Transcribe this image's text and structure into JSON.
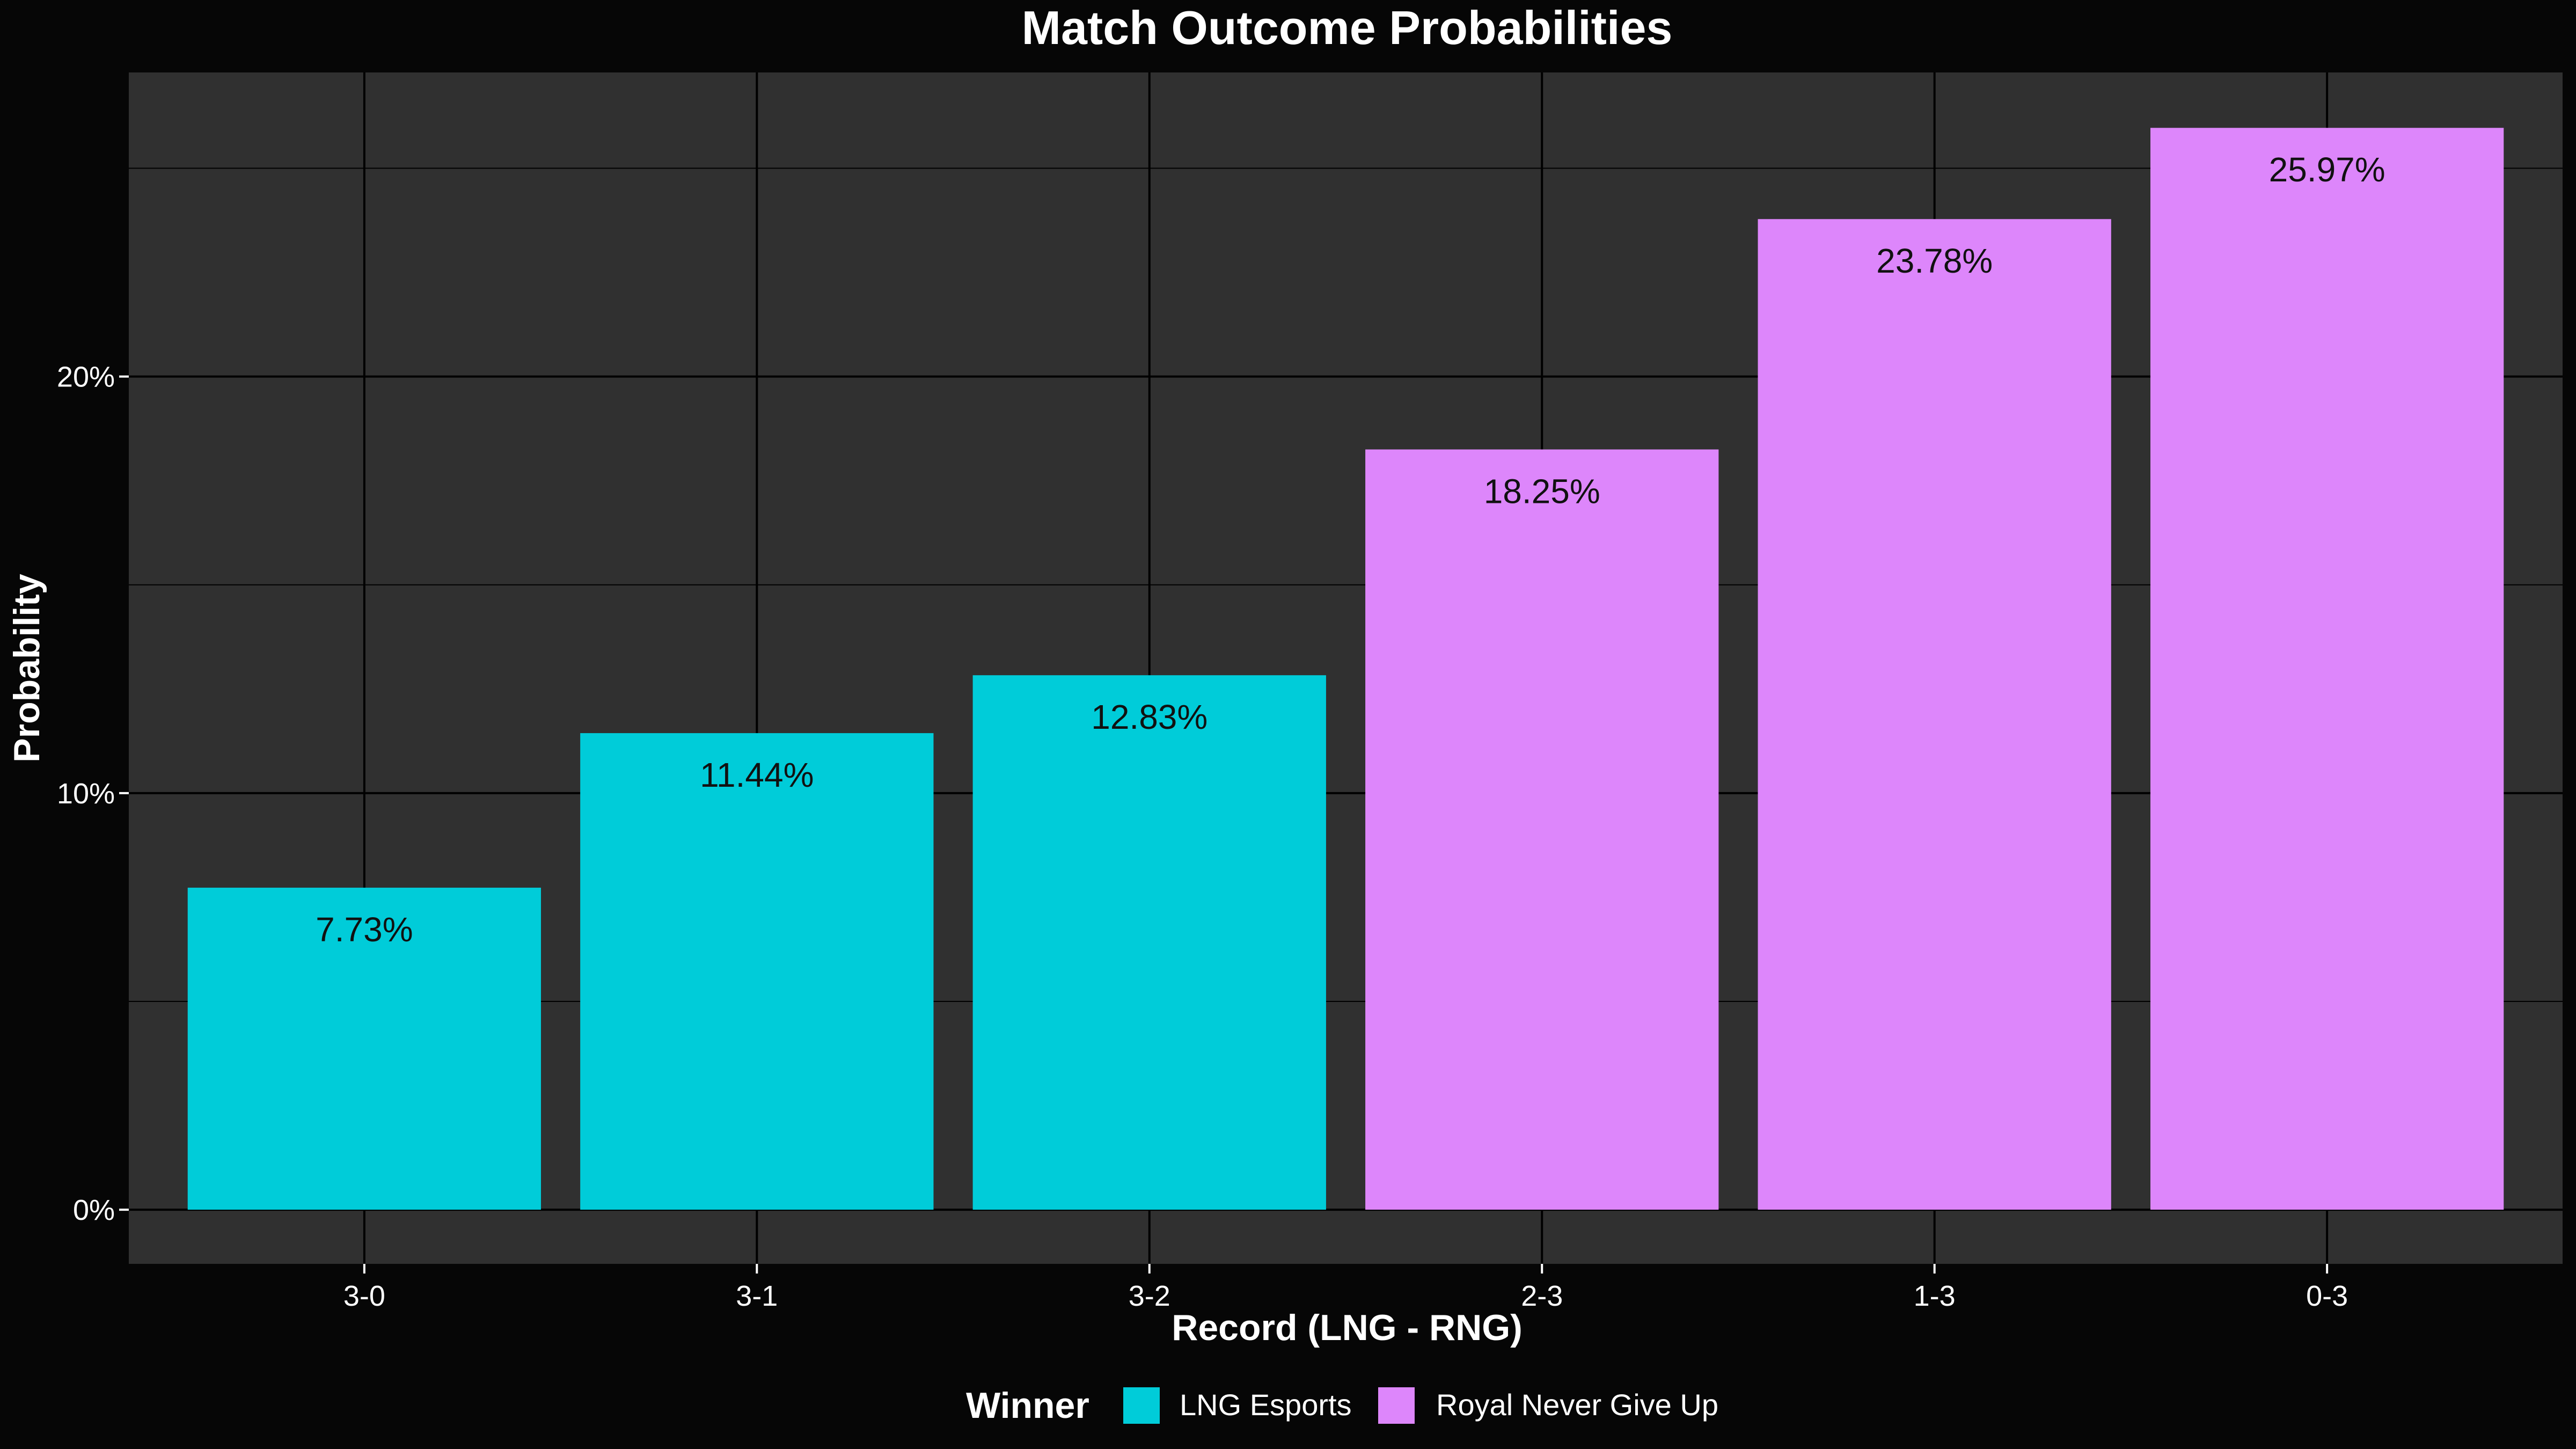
{
  "chart_data": {
    "type": "bar",
    "title": "Match Outcome Probabilities",
    "xlabel": "Record (LNG - RNG)",
    "ylabel": "Probability",
    "categories": [
      "3-0",
      "3-1",
      "3-2",
      "2-3",
      "1-3",
      "0-3"
    ],
    "values": [
      7.73,
      11.44,
      12.83,
      18.25,
      23.78,
      25.97
    ],
    "data_labels": [
      "7.73%",
      "11.44%",
      "12.83%",
      "18.25%",
      "23.78%",
      "25.97%"
    ],
    "bar_winner": [
      "LNG Esports",
      "LNG Esports",
      "LNG Esports",
      "Royal Never Give Up",
      "Royal Never Give Up",
      "Royal Never Give Up"
    ],
    "ylim": [
      -1.3,
      27.3
    ],
    "y_ticks": [
      0,
      10,
      20
    ],
    "y_tick_labels": [
      "0%",
      "10%",
      "20%"
    ],
    "grid": true,
    "legend": {
      "title": "Winner",
      "position": "bottom",
      "entries": [
        {
          "label": "LNG Esports",
          "color": "#00CCD9"
        },
        {
          "label": "Royal Never Give Up",
          "color": "#DD86FB"
        }
      ]
    },
    "colors": {
      "page_background": "#060606",
      "panel_background": "#303030",
      "gridline": "#000000"
    }
  }
}
